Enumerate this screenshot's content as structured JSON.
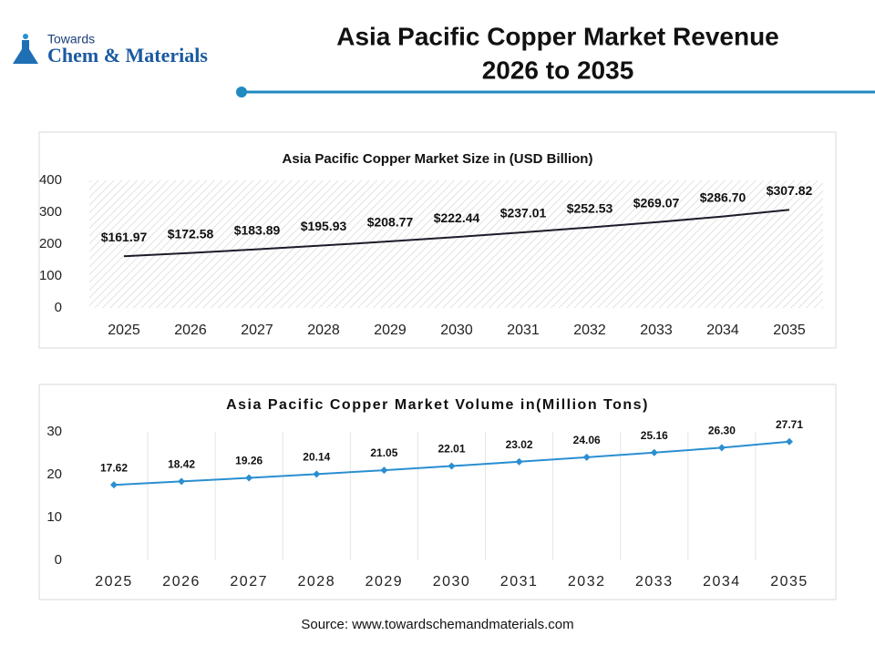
{
  "header": {
    "logo_small": "Towards",
    "logo_large": "Chem & Materials",
    "title": [
      "Asia Pacific Copper Market Revenue",
      "2026 to 2035"
    ]
  },
  "source": "Source: www.towardschemandmaterials.com",
  "chart_data": [
    {
      "type": "line",
      "title": "Asia Pacific Copper Market Size in (USD Billion)",
      "categories": [
        "2025",
        "2026",
        "2027",
        "2028",
        "2029",
        "2030",
        "2031",
        "2032",
        "2033",
        "2034",
        "2035"
      ],
      "series": [
        {
          "color": "#1c1c2a",
          "values": [
            161.97,
            172.58,
            183.89,
            195.93,
            208.77,
            222.44,
            237.01,
            252.53,
            269.07,
            286.7,
            307.82
          ],
          "value_labels": [
            "$161.97",
            "$172.58",
            "$183.89",
            "$195.93",
            "$208.77",
            "$222.44",
            "$237.01",
            "$252.53",
            "$269.07",
            "$286.70",
            "$307.82"
          ]
        }
      ],
      "ylim": [
        0,
        400
      ],
      "yticks": [
        0,
        100,
        200,
        300,
        400
      ]
    },
    {
      "type": "line",
      "title": "Asia Pacific Copper Market Volume in(Million Tons)",
      "categories": [
        "2025",
        "2026",
        "2027",
        "2028",
        "2029",
        "2030",
        "2031",
        "2032",
        "2033",
        "2034",
        "2035"
      ],
      "series": [
        {
          "color": "#2a8fd0",
          "marker": "diamond",
          "values": [
            17.62,
            18.42,
            19.26,
            20.14,
            21.05,
            22.01,
            23.02,
            24.06,
            25.16,
            26.3,
            27.71
          ],
          "value_labels": [
            "17.62",
            "18.42",
            "19.26",
            "20.14",
            "21.05",
            "22.01",
            "23.02",
            "24.06",
            "25.16",
            "26.30",
            "27.71"
          ]
        }
      ],
      "ylim": [
        0,
        30
      ],
      "yticks": [
        0,
        10,
        20,
        30
      ],
      "grid": "x"
    }
  ]
}
